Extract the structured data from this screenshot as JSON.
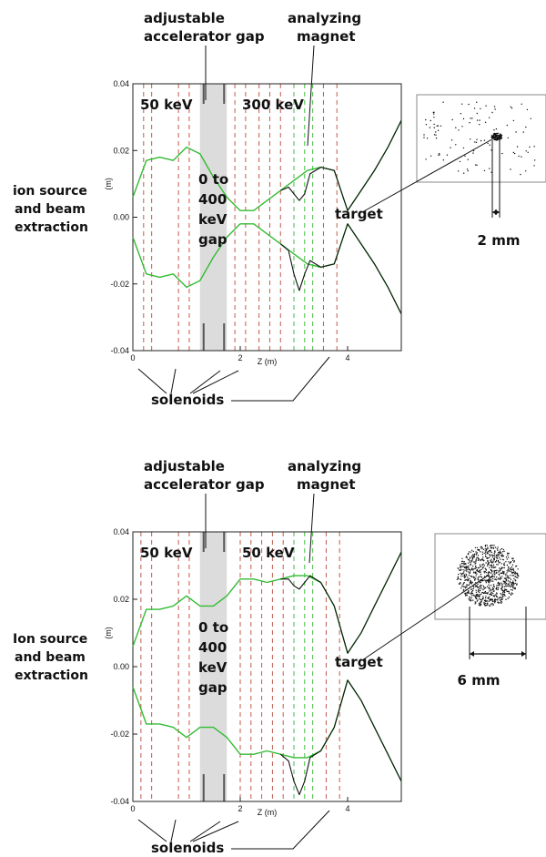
{
  "chart_data": [
    {
      "type": "line",
      "xlabel": "Z (m)",
      "ylabel": "(m)",
      "xlim": [
        0,
        5
      ],
      "ylim": [
        -0.04,
        0.04
      ],
      "x_ticks": [
        "0",
        "2",
        "4"
      ],
      "y_ticks": [
        "0.04",
        "0.02",
        "0.00",
        "-0.02",
        "-0.04"
      ],
      "gap_region": [
        1.25,
        1.75
      ],
      "annotations": {
        "gap_title_1": "adjustable",
        "gap_title_2": "accelerator gap",
        "magnet_1": "analyzing",
        "magnet_2": "magnet",
        "energy_left": "50 keV",
        "energy_right": "300 keV",
        "gap_1": "0 to",
        "gap_2": "400",
        "gap_3": "keV",
        "gap_4": "gap",
        "source_1": "ion source",
        "source_2": "and beam",
        "source_3": "extraction",
        "target": "target",
        "solenoids": "solenoids",
        "spot_size": "2 mm"
      },
      "series": [
        {
          "color": "#33bb33",
          "x": [
            0,
            0.25,
            0.5,
            0.75,
            1.0,
            1.25,
            1.5,
            1.75,
            2.0,
            2.25,
            2.5,
            2.75,
            3.0,
            3.25,
            3.5,
            3.75,
            4.0,
            4.25,
            4.5,
            4.75,
            5.0
          ],
          "upper": [
            0.006,
            0.017,
            0.018,
            0.017,
            0.021,
            0.019,
            0.012,
            0.006,
            0.002,
            0.002,
            0.005,
            0.008,
            0.011,
            0.014,
            0.015,
            0.014,
            0.002,
            0.008,
            0.014,
            0.021,
            0.029
          ],
          "lower": [
            -0.006,
            -0.017,
            -0.018,
            -0.017,
            -0.021,
            -0.019,
            -0.012,
            -0.006,
            -0.002,
            -0.002,
            -0.005,
            -0.008,
            -0.011,
            -0.014,
            -0.015,
            -0.014,
            -0.002,
            -0.008,
            -0.014,
            -0.021,
            -0.029
          ]
        },
        {
          "color": "#111111",
          "x": [
            2.75,
            2.9,
            3.0,
            3.1,
            3.2,
            3.3,
            3.5,
            3.75,
            4.0,
            4.25,
            4.5,
            4.75,
            5.0
          ],
          "upper": [
            0.008,
            0.009,
            0.007,
            0.005,
            0.007,
            0.013,
            0.015,
            0.014,
            0.002,
            0.008,
            0.014,
            0.021,
            0.029
          ],
          "lower": [
            -0.008,
            -0.01,
            -0.017,
            -0.022,
            -0.017,
            -0.013,
            -0.015,
            -0.014,
            -0.002,
            -0.008,
            -0.014,
            -0.021,
            -0.029
          ]
        }
      ],
      "solenoid_lines_x": [
        0.2,
        0.35,
        0.85,
        1.05,
        1.9,
        2.1,
        2.35,
        2.55,
        2.75,
        3.55,
        3.8
      ],
      "magnet_lines_x": [
        3.0,
        3.2,
        3.35
      ]
    },
    {
      "type": "line",
      "xlabel": "Z (m)",
      "ylabel": "(m)",
      "xlim": [
        0,
        5
      ],
      "ylim": [
        -0.04,
        0.04
      ],
      "x_ticks": [
        "0",
        "2",
        "4"
      ],
      "y_ticks": [
        "0.04",
        "0.02",
        "0.00",
        "-0.02",
        "-0.04"
      ],
      "gap_region": [
        1.25,
        1.75
      ],
      "annotations": {
        "gap_title_1": "adjustable",
        "gap_title_2": "accelerator gap",
        "magnet_1": "analyzing",
        "magnet_2": "magnet",
        "energy_left": "50 keV",
        "energy_right": "50 keV",
        "gap_1": "0 to",
        "gap_2": "400",
        "gap_3": "keV",
        "gap_4": "gap",
        "source_1": "Ion source",
        "source_2": "and beam",
        "source_3": "extraction",
        "target": "target",
        "solenoids": "solenoids",
        "spot_size": "6 mm"
      },
      "series": [
        {
          "color": "#33bb33",
          "x": [
            0,
            0.25,
            0.5,
            0.75,
            1.0,
            1.25,
            1.5,
            1.75,
            2.0,
            2.25,
            2.5,
            2.75,
            3.0,
            3.25,
            3.5,
            3.75,
            4.0,
            4.25,
            4.5,
            4.75,
            5.0
          ],
          "upper": [
            0.006,
            0.017,
            0.017,
            0.018,
            0.021,
            0.018,
            0.018,
            0.021,
            0.026,
            0.026,
            0.025,
            0.026,
            0.027,
            0.027,
            0.025,
            0.018,
            0.004,
            0.01,
            0.018,
            0.026,
            0.034
          ],
          "lower": [
            -0.006,
            -0.017,
            -0.017,
            -0.018,
            -0.021,
            -0.018,
            -0.018,
            -0.021,
            -0.026,
            -0.026,
            -0.025,
            -0.026,
            -0.027,
            -0.027,
            -0.025,
            -0.018,
            -0.004,
            -0.01,
            -0.018,
            -0.026,
            -0.034
          ]
        },
        {
          "color": "#111111",
          "x": [
            2.75,
            2.9,
            3.0,
            3.1,
            3.2,
            3.3,
            3.5,
            3.75,
            4.0,
            4.25,
            4.5,
            4.75,
            5.0
          ],
          "upper": [
            0.026,
            0.026,
            0.024,
            0.023,
            0.025,
            0.027,
            0.025,
            0.018,
            0.004,
            0.01,
            0.018,
            0.026,
            0.034
          ],
          "lower": [
            -0.026,
            -0.028,
            -0.034,
            -0.038,
            -0.034,
            -0.027,
            -0.025,
            -0.018,
            -0.004,
            -0.01,
            -0.018,
            -0.026,
            -0.034
          ]
        }
      ],
      "solenoid_lines_x": [
        0.15,
        0.35,
        0.85,
        1.05,
        2.0,
        2.2,
        2.4,
        2.6,
        2.8,
        3.6,
        3.85
      ],
      "magnet_lines_x": [
        3.0,
        3.2,
        3.35
      ]
    }
  ]
}
